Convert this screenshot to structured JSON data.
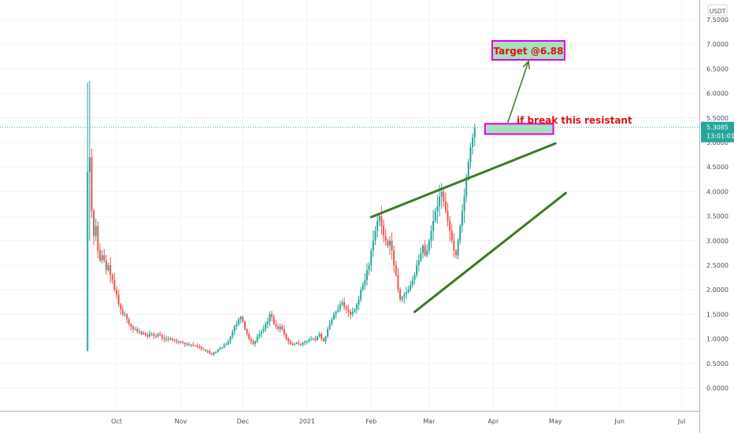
{
  "chart_data": {
    "type": "candlestick",
    "currency": "USDT",
    "price_tag": "5.3085",
    "countdown": "13:01:01",
    "y_ticks": [
      "7.5000",
      "7.0000",
      "6.5000",
      "6.0000",
      "5.5000",
      "5.0000",
      "4.5000",
      "4.0000",
      "3.5000",
      "3.0000",
      "2.5000",
      "2.0000",
      "1.5000",
      "1.0000",
      "0.5000",
      "0.0000"
    ],
    "y_tick_values": [
      7.5,
      7.0,
      6.5,
      6.0,
      5.5,
      5.0,
      4.5,
      4.0,
      3.5,
      3.0,
      2.5,
      2.0,
      1.5,
      1.0,
      0.5,
      0.0
    ],
    "x_ticks": [
      {
        "label": "Oct",
        "date": "2020-10-01"
      },
      {
        "label": "Nov",
        "date": "2020-11-01"
      },
      {
        "label": "Dec",
        "date": "2020-12-01"
      },
      {
        "label": "2021",
        "date": "2021-01-01"
      },
      {
        "label": "Feb",
        "date": "2021-02-01"
      },
      {
        "label": "Mar",
        "date": "2021-03-01"
      },
      {
        "label": "Apr",
        "date": "2021-04-01"
      },
      {
        "label": "May",
        "date": "2021-05-01"
      },
      {
        "label": "Jun",
        "date": "2021-06-01"
      },
      {
        "label": "Jul",
        "date": "2021-07-01"
      }
    ],
    "colors": {
      "up": "#26a69a",
      "down": "#ef5350",
      "trendline": "#3c7a22",
      "box_fill": "#a5e0bf",
      "box_border": "#e100e1",
      "label_text": "#e01010",
      "arrow": "#3c7a22",
      "price_line": "#26a69a"
    },
    "price_series": {
      "start_date": "2020-09-17",
      "closes": [
        4.4,
        4.7,
        3.6,
        3.1,
        3.3,
        2.8,
        2.6,
        2.7,
        2.6,
        2.4,
        2.5,
        2.3,
        2.2,
        2.0,
        1.9,
        1.7,
        1.6,
        1.5,
        1.5,
        1.4,
        1.3,
        1.25,
        1.2,
        1.2,
        1.15,
        1.15,
        1.1,
        1.12,
        1.08,
        1.05,
        1.1,
        1.1,
        1.06,
        1.05,
        1.1,
        1.08,
        1.02,
        1.0,
        1.0,
        0.98,
        1.0,
        0.98,
        0.96,
        0.95,
        0.95,
        0.93,
        0.92,
        0.9,
        0.9,
        0.88,
        0.88,
        0.87,
        0.86,
        0.85,
        0.84,
        0.8,
        0.78,
        0.75,
        0.75,
        0.7,
        0.68,
        0.72,
        0.74,
        0.78,
        0.8,
        0.82,
        0.88,
        0.9,
        0.95,
        1.05,
        1.15,
        1.25,
        1.3,
        1.4,
        1.45,
        1.35,
        1.2,
        1.1,
        1.0,
        0.95,
        0.9,
        0.95,
        1.05,
        1.1,
        1.15,
        1.2,
        1.3,
        1.35,
        1.5,
        1.45,
        1.3,
        1.25,
        1.2,
        1.25,
        1.2,
        1.1,
        1.0,
        0.95,
        0.9,
        0.88,
        0.9,
        0.92,
        0.9,
        0.88,
        0.92,
        0.95,
        0.95,
        0.98,
        1.0,
        1.0,
        0.98,
        1.05,
        1.1,
        1.0,
        0.95,
        1.05,
        1.2,
        1.3,
        1.4,
        1.5,
        1.55,
        1.6,
        1.7,
        1.75,
        1.65,
        1.6,
        1.55,
        1.5,
        1.55,
        1.6,
        1.7,
        1.8,
        2.0,
        2.1,
        2.2,
        2.4,
        2.5,
        2.8,
        3.0,
        3.2,
        3.4,
        3.5,
        3.3,
        3.1,
        3.0,
        2.9,
        3.0,
        2.8,
        2.5,
        2.3,
        2.0,
        1.8,
        1.85,
        1.9,
        1.95,
        2.0,
        2.1,
        2.2,
        2.3,
        2.5,
        2.6,
        2.75,
        2.9,
        2.7,
        2.8,
        3.0,
        3.2,
        3.4,
        3.6,
        3.7,
        3.9,
        4.0,
        3.8,
        3.6,
        3.4,
        3.2,
        3.0,
        2.8,
        2.7,
        3.0,
        3.3,
        3.6,
        3.9,
        4.3,
        4.6,
        4.9,
        5.1,
        5.3
      ]
    },
    "trendlines": [
      {
        "name": "upper-trendline",
        "from": {
          "date": "2021-02-01",
          "value": 3.48
        },
        "to": {
          "date": "2021-05-01",
          "value": 4.98
        }
      },
      {
        "name": "lower-trendline",
        "from": {
          "date": "2021-02-22",
          "value": 1.55
        },
        "to": {
          "date": "2021-05-06",
          "value": 3.97
        }
      }
    ],
    "resistance_box": {
      "from_date": "2021-03-28",
      "to_date": "2021-04-30",
      "top": 5.38,
      "bottom": 5.17
    },
    "resistance_label": "if break this resistant",
    "target_label": "Target @6.88",
    "arrow": {
      "from": {
        "date": "2021-04-08",
        "value": 5.4
      },
      "to": {
        "date": "2021-04-18",
        "value": 6.65
      }
    }
  }
}
